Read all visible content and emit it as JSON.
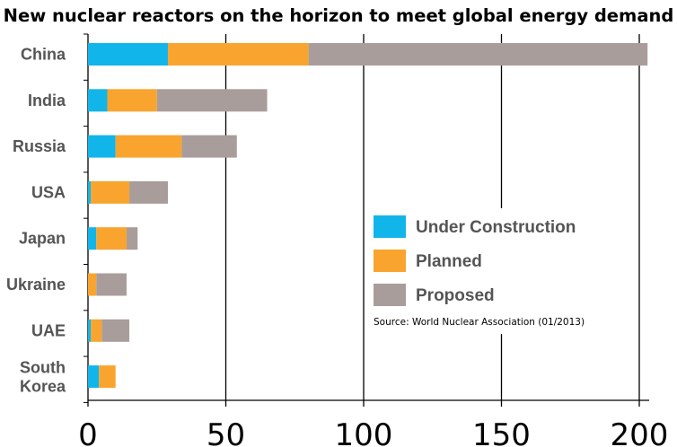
{
  "chart_data": {
    "type": "bar",
    "orientation": "horizontal",
    "stacked": true,
    "title": "New nuclear reactors on the horizon to meet global energy demand",
    "categories": [
      "China",
      "India",
      "Russia",
      "USA",
      "Japan",
      "Ukraine",
      "UAE",
      "South Korea"
    ],
    "series": [
      {
        "name": "Under Construction",
        "color": "#12b5ea",
        "values": [
          29,
          7,
          10,
          1,
          3,
          0,
          1,
          4
        ]
      },
      {
        "name": "Planned",
        "color": "#f9a42e",
        "values": [
          51,
          18,
          24,
          14,
          11,
          3,
          4,
          6
        ]
      },
      {
        "name": "Proposed",
        "color": "#a99d9b",
        "values": [
          123,
          40,
          20,
          14,
          4,
          11,
          10,
          0
        ]
      }
    ],
    "xlim": [
      0,
      204
    ],
    "xticks": [
      0,
      50,
      100,
      150,
      200
    ],
    "xlabel": "",
    "ylabel": "",
    "grid": "vertical lines at major ticks",
    "legend": {
      "placement": "center-right",
      "entries": [
        "Under Construction",
        "Planned",
        "Proposed"
      ]
    },
    "source_note": "Source: World Nuclear Association (01/2013)"
  }
}
